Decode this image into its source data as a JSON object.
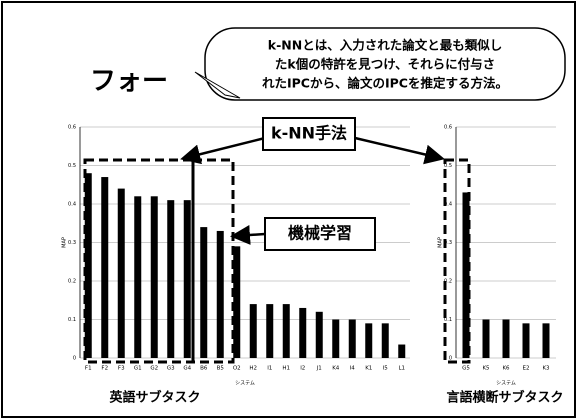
{
  "title": "フォー",
  "callout": [
    "k-NNとは、入力された論文と最も類似し",
    "たk個の特許を見つけ、それらに付与さ",
    "れたIPCから、論文のIPCを推定する方法。"
  ],
  "labels": {
    "knn": "k-NN手法",
    "ml": "機械学習"
  },
  "chart_data": [
    {
      "type": "bar",
      "subtitle": "英語サブタスク",
      "xlabel": "システム",
      "ylabel": "MAP",
      "color": "#000000",
      "grid": true,
      "categories": [
        "F1",
        "F2",
        "F3",
        "G1",
        "G2",
        "G3",
        "G4",
        "B6",
        "B5",
        "O2",
        "H2",
        "I1",
        "H1",
        "I2",
        "J1",
        "K4",
        "I4",
        "K1",
        "I5",
        "L1"
      ],
      "values": [
        0.48,
        0.47,
        0.44,
        0.42,
        0.42,
        0.41,
        0.41,
        0.34,
        0.33,
        0.29,
        0.14,
        0.14,
        0.14,
        0.13,
        0.12,
        0.1,
        0.1,
        0.09,
        0.09,
        0.035
      ],
      "ylim": [
        0,
        0.6
      ],
      "yticks": [
        0,
        0.1,
        0.2,
        0.3,
        0.4,
        0.5,
        0.6
      ]
    },
    {
      "type": "bar",
      "subtitle": "言語横断サブタスク",
      "xlabel": "システム",
      "ylabel": "MAP",
      "color": "#000000",
      "grid": true,
      "categories": [
        "G5",
        "K5",
        "K6",
        "E2",
        "K3"
      ],
      "values": [
        0.43,
        0.1,
        0.1,
        0.09,
        0.09
      ],
      "ylim": [
        0,
        0.6
      ],
      "yticks": [
        0,
        0.1,
        0.2,
        0.3,
        0.4,
        0.5,
        0.6
      ]
    }
  ]
}
